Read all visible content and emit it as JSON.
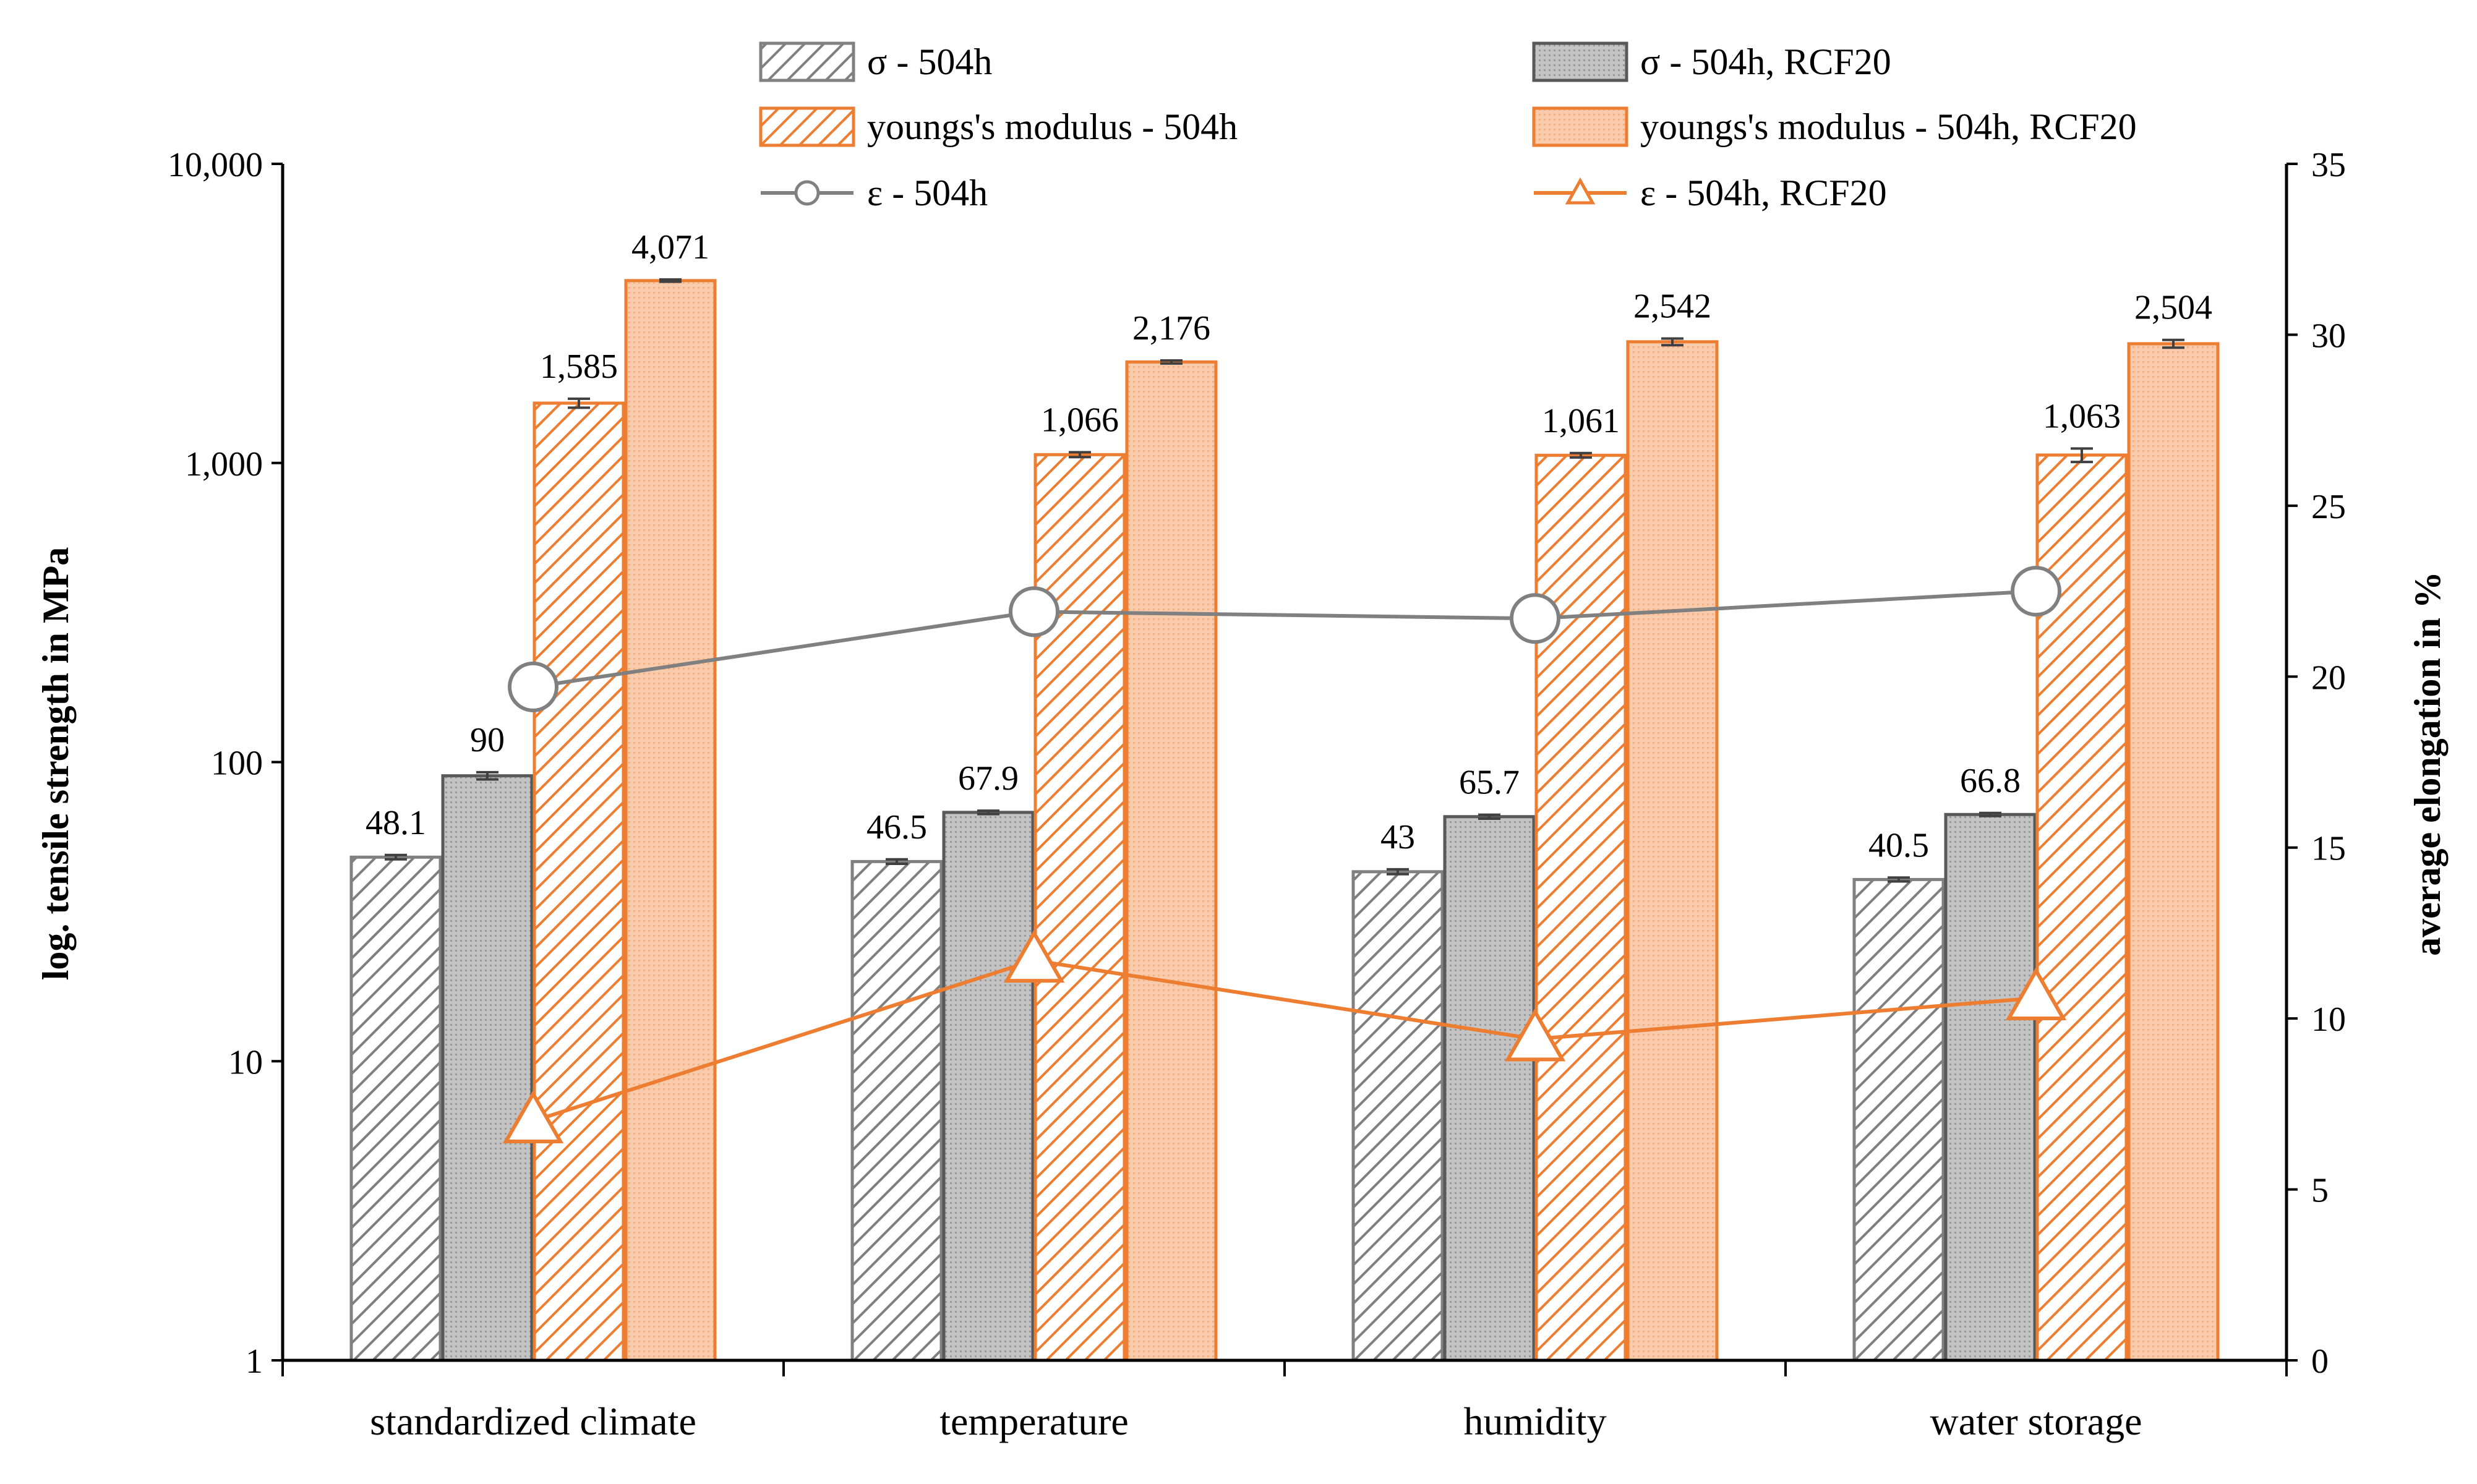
{
  "chart_data": {
    "type": "bar",
    "categories": [
      "standardized climate",
      "temperature",
      "humidity",
      "water storage"
    ],
    "ylabel": "log. tensile strength in MPa",
    "y2label": "average elongation in %",
    "yscale": "log",
    "ylim": [
      1,
      10000
    ],
    "yticks": [
      1,
      10,
      100,
      1000,
      10000
    ],
    "ytick_labels": [
      "1",
      "10",
      "100",
      "1,000",
      "10,000"
    ],
    "y2lim": [
      0,
      35
    ],
    "y2ticks": [
      0,
      5,
      10,
      15,
      20,
      25,
      30,
      35
    ],
    "y2tick_labels": [
      "0",
      "5",
      "10",
      "15",
      "20",
      "25",
      "30",
      "35"
    ],
    "series": [
      {
        "name": "σ - 504h",
        "kind": "bar",
        "style": "hatch-gray",
        "values": [
          48.1,
          46.5,
          43,
          40.5
        ],
        "labels": [
          "48.1",
          "46.5",
          "43",
          "40.5"
        ],
        "errors": [
          0.8,
          0.8,
          0.8,
          0.6
        ]
      },
      {
        "name": "σ - 504h, RCF20",
        "kind": "bar",
        "style": "solid-gray",
        "values": [
          90,
          67.9,
          65.7,
          66.8
        ],
        "labels": [
          "90",
          "67.9",
          "65.7",
          "66.8"
        ],
        "errors": [
          2.5,
          0.9,
          1.0,
          0.8
        ]
      },
      {
        "name": "youngs's modulus - 504h",
        "kind": "bar",
        "style": "hatch-orange",
        "values": [
          1585,
          1066,
          1061,
          1063
        ],
        "labels": [
          "1,585",
          "1,066",
          "1,061",
          "1,063"
        ],
        "errors": [
          55,
          20,
          18,
          55
        ]
      },
      {
        "name": "youngs's modulus - 504h, RCF20",
        "kind": "bar",
        "style": "solid-orange",
        "values": [
          4071,
          2176,
          2542,
          2504
        ],
        "labels": [
          "4,071",
          "2,176",
          "2,542",
          "2,504"
        ],
        "errors": [
          35,
          25,
          65,
          75
        ]
      },
      {
        "name": "ε - 504h",
        "kind": "line",
        "axis": "right",
        "marker": "circle",
        "color": "#808080",
        "values": [
          19.7,
          21.9,
          21.7,
          22.5
        ]
      },
      {
        "name": "ε - 504h, RCF20",
        "kind": "line",
        "axis": "right",
        "marker": "triangle",
        "color": "#ED7D31",
        "values": [
          7.0,
          11.7,
          9.4,
          10.6
        ]
      }
    ],
    "legend_position": "top"
  },
  "colors": {
    "gray_line": "#808080",
    "gray_fill": "#BFBFBF",
    "gray_hatch": "#7F7F7F",
    "orange": "#ED7D31",
    "orange_fill": "#F8CBAD",
    "axis": "#000000"
  }
}
